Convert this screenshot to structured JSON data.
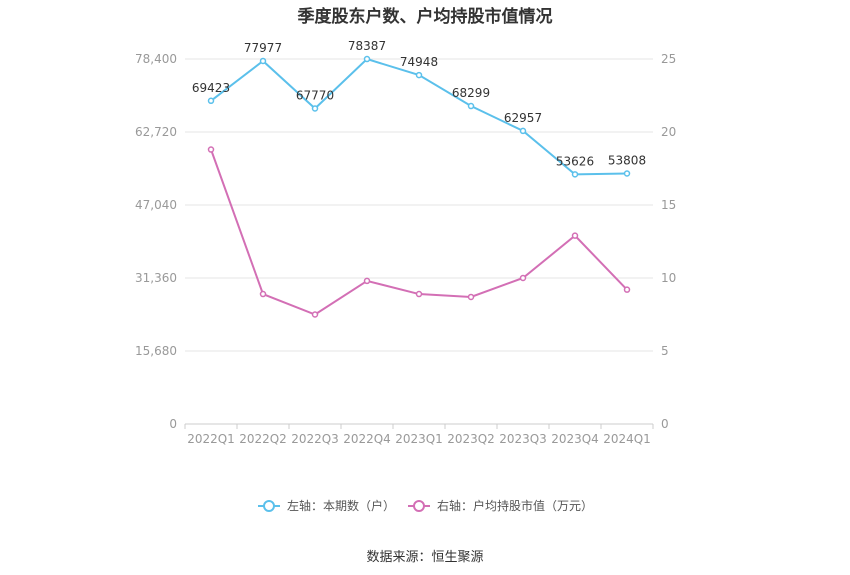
{
  "chart_data": {
    "type": "line",
    "title": "季度股东户数、户均持股市值情况",
    "categories": [
      "2022Q1",
      "2022Q2",
      "2022Q3",
      "2022Q4",
      "2023Q1",
      "2023Q2",
      "2023Q3",
      "2023Q4",
      "2024Q1"
    ],
    "left_axis": {
      "ticks": [
        "0",
        "15,680",
        "31,360",
        "47,040",
        "62,720",
        "78,400"
      ],
      "ylim": [
        0,
        78400
      ]
    },
    "right_axis": {
      "ticks": [
        "0",
        "5",
        "10",
        "15",
        "20",
        "25"
      ],
      "ylim": [
        0,
        25
      ]
    },
    "series": [
      {
        "name": "左轴：本期数（户）",
        "axis": "left",
        "color": "#5bc0eb",
        "values": [
          69423,
          77977,
          67770,
          78387,
          74948,
          68299,
          62957,
          53626,
          53808
        ],
        "labels": [
          "69423",
          "77977",
          "67770",
          "78387",
          "74948",
          "68299",
          "62957",
          "53626",
          "53808"
        ]
      },
      {
        "name": "右轴：户均持股市值（万元）",
        "axis": "right",
        "color": "#d36fb5",
        "values": [
          18.8,
          8.9,
          7.5,
          9.8,
          8.9,
          8.7,
          10.0,
          12.9,
          9.2
        ]
      }
    ],
    "grid": true,
    "legend_position": "bottom"
  },
  "source": "数据来源：恒生聚源"
}
